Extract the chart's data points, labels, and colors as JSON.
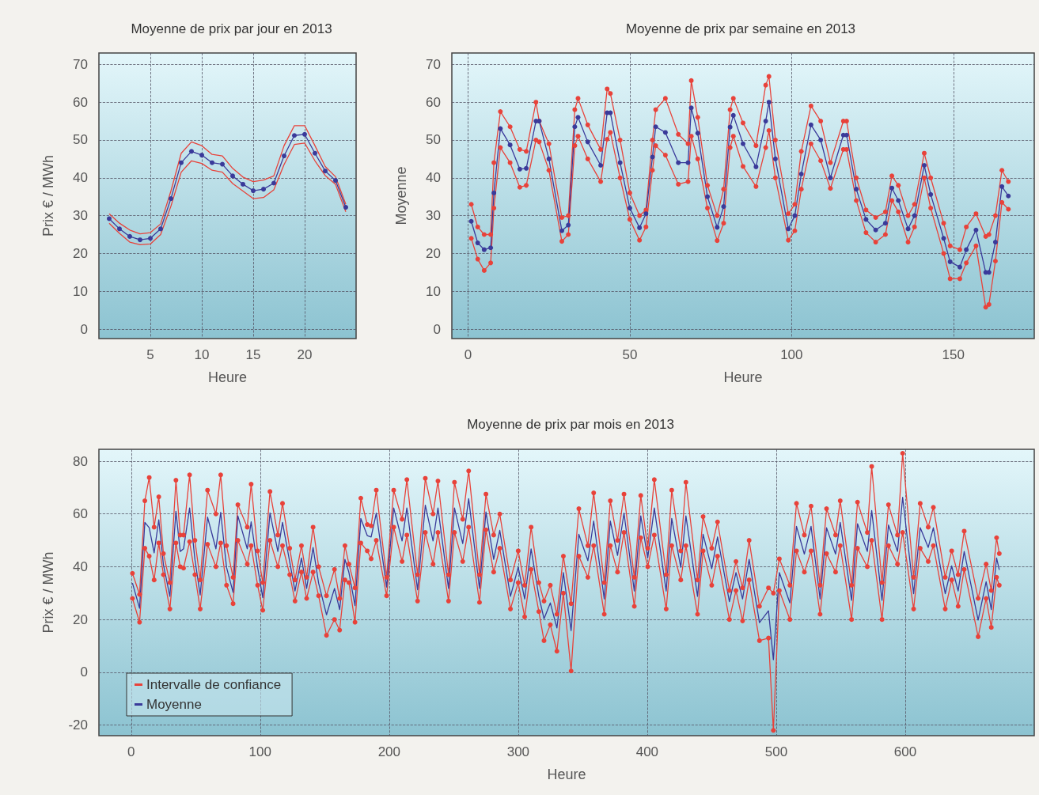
{
  "chart_data": [
    {
      "type": "line",
      "title": "Moyenne de prix par jour en 2013",
      "xlabel": "Heure",
      "ylabel": "Prix € / MWh",
      "xlim": [
        0,
        25
      ],
      "xticks": [
        5,
        10,
        15,
        20
      ],
      "ylim": [
        -2.5,
        73
      ],
      "yticks": [
        0,
        10,
        20,
        30,
        40,
        50,
        60,
        70
      ],
      "grid": true,
      "legend": false,
      "x": [
        1,
        2,
        3,
        4,
        5,
        6,
        7,
        8,
        9,
        10,
        11,
        12,
        13,
        14,
        15,
        16,
        17,
        18,
        19,
        20,
        21,
        22,
        23,
        24
      ],
      "series": [
        {
          "color": "#e8423a",
          "marker": "none",
          "values": [
            30.5,
            28,
            26.2,
            25.2,
            25.5,
            27.8,
            36.5,
            46.5,
            49.5,
            48.5,
            46.2,
            45.8,
            42.5,
            40.2,
            39,
            39.4,
            40.5,
            48.5,
            53.8,
            53.8,
            48.5,
            43,
            40.3,
            33
          ]
        },
        {
          "color": "#e8423a",
          "marker": "none",
          "values": [
            28,
            25.3,
            23,
            22.3,
            22.5,
            25,
            32.5,
            41.5,
            44.5,
            43.8,
            42,
            41.5,
            38.5,
            36.5,
            34.5,
            34.8,
            36.8,
            43.5,
            48.8,
            49.2,
            44.5,
            40.6,
            38.3,
            31
          ]
        },
        {
          "color": "#3a3a9a",
          "marker": "circle",
          "values": [
            29.2,
            26.5,
            24.5,
            23.6,
            24,
            26.5,
            34.5,
            44,
            47,
            46,
            44,
            43.6,
            40.5,
            38.3,
            36.6,
            37,
            38.6,
            45.8,
            51.2,
            51.5,
            46.5,
            41.8,
            39.3,
            32.2
          ]
        }
      ]
    },
    {
      "type": "line",
      "title": "Moyenne de prix par semaine en 2013",
      "xlabel": "Heure",
      "ylabel": "Moyenne",
      "xlim": [
        -5,
        175
      ],
      "xticks": [
        0,
        50,
        100,
        150
      ],
      "ylim": [
        -2.5,
        73
      ],
      "yticks": [
        0,
        10,
        20,
        30,
        40,
        50,
        60,
        70
      ],
      "grid": true,
      "legend": false,
      "x": [
        1,
        3,
        5,
        7,
        8,
        10,
        13,
        16,
        18,
        21,
        22,
        25,
        29,
        31,
        33,
        34,
        37,
        41,
        43,
        44,
        47,
        50,
        53,
        55,
        57,
        58,
        61,
        65,
        68,
        69,
        71,
        74,
        77,
        79,
        81,
        82,
        85,
        89,
        92,
        93,
        95,
        99,
        101,
        103,
        106,
        109,
        112,
        116,
        117,
        120,
        123,
        126,
        129,
        131,
        133,
        136,
        138,
        141,
        143,
        147,
        149,
        152,
        154,
        157,
        160,
        161,
        163,
        165,
        167
      ],
      "series": [
        {
          "color": "#e8423a",
          "marker": "circle",
          "values": [
            33,
            27,
            25,
            25,
            44,
            57.5,
            53.5,
            47.5,
            47,
            60,
            55,
            49,
            29.5,
            30,
            58,
            61,
            54,
            47.5,
            63.5,
            62.3,
            50,
            36,
            30,
            31.5,
            50,
            58,
            61,
            51.5,
            49,
            65.7,
            56,
            38,
            30,
            37,
            58,
            61,
            54.5,
            48.5,
            64.5,
            66.8,
            50,
            30.5,
            33,
            47,
            59,
            55,
            44,
            55,
            55,
            40,
            31.5,
            29.5,
            31,
            40.5,
            38,
            30,
            33,
            46.5,
            40,
            28,
            22,
            21,
            27,
            30.5,
            24.5,
            25,
            30,
            42,
            39
          ]
        },
        {
          "color": "#e8423a",
          "marker": "circle",
          "values": [
            24,
            18.5,
            15.5,
            17.5,
            32,
            48,
            44,
            37.5,
            38,
            50,
            49.5,
            42,
            23.2,
            25,
            48.5,
            51,
            45,
            39,
            50.2,
            52,
            40,
            29,
            23.5,
            27,
            42,
            48.5,
            46,
            38.3,
            39,
            51,
            45,
            32,
            23.4,
            28,
            48,
            51,
            43,
            37.7,
            48,
            52.5,
            40,
            23.5,
            26,
            37,
            49,
            44.5,
            37.2,
            47.5,
            47.5,
            34,
            25.5,
            23,
            25,
            34,
            31,
            23,
            27,
            40,
            32,
            20,
            13.3,
            13.3,
            17.5,
            22,
            5.8,
            6.5,
            18,
            33.5,
            31.7
          ]
        },
        {
          "color": "#3a3a9a",
          "marker": "circle",
          "values": [
            28.5,
            22.8,
            21,
            21.5,
            36,
            53,
            48.7,
            42.3,
            42.5,
            55,
            55,
            45,
            26,
            27.5,
            53.5,
            56,
            49.5,
            43.3,
            57.2,
            57.2,
            44,
            32,
            26.8,
            30.5,
            45.5,
            53.5,
            52,
            44,
            44,
            58.5,
            51.8,
            35,
            26.9,
            32.4,
            53.4,
            56.5,
            49,
            42.9,
            55,
            60,
            45,
            26.5,
            30,
            41,
            54,
            50,
            40,
            51.3,
            51.3,
            37,
            29,
            26.2,
            28,
            37.3,
            34,
            26.5,
            30,
            43.3,
            35.6,
            24,
            17.8,
            16.4,
            21,
            26.2,
            15,
            15,
            23,
            37.7,
            35.2
          ]
        }
      ]
    },
    {
      "type": "line",
      "title": "Moyenne de prix par mois en 2013",
      "xlabel": "Heure",
      "ylabel": "Prix € / MWh",
      "xlim": [
        -25,
        700
      ],
      "xticks": [
        0,
        100,
        200,
        300,
        400,
        500,
        600
      ],
      "ylim": [
        -24,
        84.5
      ],
      "yticks": [
        -20,
        0,
        20,
        40,
        60,
        80
      ],
      "grid": true,
      "legend": "bottom left",
      "x": [
        1,
        6.5,
        10.6,
        14,
        17.8,
        21.4,
        25,
        30,
        34.7,
        38,
        40.6,
        45.3,
        49.4,
        53.5,
        59.2,
        65.7,
        69.4,
        73.9,
        79,
        82.7,
        90,
        93,
        98,
        102,
        107.6,
        113.7,
        117.3,
        122.9,
        127,
        132,
        136,
        141,
        145.3,
        151.4,
        157.6,
        161.6,
        165.7,
        168.8,
        173.5,
        178,
        183,
        186,
        190,
        198,
        203.5,
        210,
        213.7,
        222,
        228,
        234,
        237.8,
        246,
        250.6,
        257,
        261.6,
        270,
        275,
        281,
        285.7,
        294,
        300,
        305,
        310,
        316,
        320,
        324.9,
        330,
        335,
        341,
        347,
        354,
        358.5,
        366.7,
        371.4,
        377,
        382,
        390,
        395,
        400.4,
        405.5,
        414.7,
        419,
        426,
        430,
        439,
        443.3,
        450,
        454.5,
        463.7,
        468.8,
        473.9,
        479,
        487,
        494,
        497.8,
        502.4,
        510.6,
        515.7,
        521.8,
        527,
        534,
        539,
        546,
        549.6,
        558.4,
        563,
        570.6,
        574,
        582,
        587,
        594,
        598,
        606.5,
        611.6,
        617.8,
        621.8,
        631,
        636,
        641,
        645.7,
        656.5,
        662.7,
        666.7,
        670.8,
        672.9
      ],
      "series": [
        {
          "name": "Intervalle de confiance",
          "color": "#e8423a",
          "marker": "circle",
          "values": [
            37.5,
            29.5,
            65,
            73.8,
            55,
            66.5,
            45,
            34,
            72.8,
            52,
            52,
            74.8,
            50,
            35,
            69,
            60,
            74.8,
            48,
            36,
            63.5,
            55,
            71.3,
            46,
            34,
            68.5,
            52,
            64,
            47,
            35,
            48,
            36,
            55,
            40,
            29,
            39,
            28,
            48,
            41,
            32,
            66,
            56,
            55.5,
            69,
            36,
            69,
            58,
            73,
            37,
            73.5,
            60,
            72.5,
            37,
            72,
            58,
            76.3,
            37,
            67.5,
            52,
            60,
            35,
            46,
            33,
            55,
            34,
            27,
            33,
            22,
            44,
            26,
            62,
            48,
            68,
            34,
            65,
            50,
            67.5,
            36,
            67,
            47,
            73,
            37,
            69,
            46,
            72,
            35,
            59,
            47,
            57,
            31,
            42,
            32,
            50,
            25,
            32,
            30,
            43,
            33,
            64,
            52,
            63,
            33,
            62,
            52,
            65,
            33,
            64.5,
            53,
            78,
            34,
            63.5,
            52,
            83,
            36,
            64,
            55,
            62.5,
            36,
            46,
            37,
            53.5,
            28,
            41,
            31,
            51,
            45
          ]
        },
        {
          "color": "#e8423a",
          "marker": "circle",
          "values": [
            28,
            19,
            47,
            44,
            35,
            49,
            37,
            24,
            49,
            40,
            39.5,
            49.5,
            37,
            24,
            48.5,
            40,
            49,
            33,
            26,
            50,
            41,
            48,
            33,
            23.5,
            50,
            40,
            48,
            37,
            27,
            38,
            28,
            38,
            29,
            14,
            20,
            16,
            35,
            34,
            19,
            49,
            46,
            43,
            50,
            29,
            55,
            42,
            52,
            27,
            53,
            41,
            53,
            27,
            53,
            42,
            55,
            26.5,
            54,
            38,
            47,
            24,
            34,
            21,
            39,
            23,
            12,
            18,
            8,
            30,
            0.5,
            44,
            36,
            48,
            22,
            48,
            38,
            53,
            25,
            51,
            40,
            52,
            24,
            48,
            35,
            48,
            22,
            46,
            33,
            44,
            20,
            31,
            19.5,
            35,
            12,
            13,
            -22,
            31,
            20,
            46,
            38,
            46,
            22,
            45,
            38,
            48,
            20,
            47,
            40,
            50,
            20,
            48,
            41,
            53,
            24,
            47,
            42,
            48,
            24,
            35,
            25,
            39,
            13.5,
            28,
            17,
            36,
            33
          ]
        },
        {
          "name": "Moyenne",
          "color": "#3a3a9a",
          "marker": "none",
          "values": [
            33.8,
            24.3,
            56.8,
            54.8,
            45.3,
            57.8,
            40.8,
            28.8,
            61,
            45.8,
            46.8,
            62.3,
            42.8,
            29.3,
            58.8,
            46.8,
            60.6,
            39.8,
            30.3,
            59.3,
            46.8,
            57,
            39.8,
            28.3,
            60.4,
            45.8,
            56.8,
            41.8,
            30.8,
            43.3,
            31.8,
            47.3,
            33.8,
            21.8,
            31.8,
            23.8,
            42.8,
            37.8,
            25.3,
            58.3,
            51.8,
            51.3,
            60.3,
            32.3,
            62.3,
            49.8,
            62.3,
            31.3,
            63.3,
            49.8,
            62.3,
            31.8,
            62.3,
            48.8,
            65.8,
            31.8,
            60.8,
            42.8,
            53.8,
            28.8,
            39.8,
            27.8,
            46.8,
            28.8,
            20.3,
            26.3,
            16.8,
            37.8,
            15.8,
            52.3,
            42.3,
            57.3,
            27.8,
            57.3,
            44.3,
            60.3,
            30.8,
            59.3,
            43.3,
            62.3,
            30.8,
            58.3,
            39.8,
            59.3,
            28.8,
            52.3,
            39.3,
            51.3,
            26.8,
            37.8,
            27.8,
            42.8,
            18.8,
            23.3,
            4.8,
            37.8,
            26.3,
            55.3,
            44.8,
            55.3,
            27.8,
            54.8,
            44.8,
            56.8,
            27.3,
            56.3,
            45.8,
            61.3,
            27.3,
            55.8,
            45.8,
            66.3,
            29.8,
            54.8,
            47.3,
            54.8,
            29.8,
            40.3,
            30.8,
            45.8,
            19.8,
            34.3,
            23.8,
            43.3,
            38.8
          ]
        }
      ]
    }
  ]
}
